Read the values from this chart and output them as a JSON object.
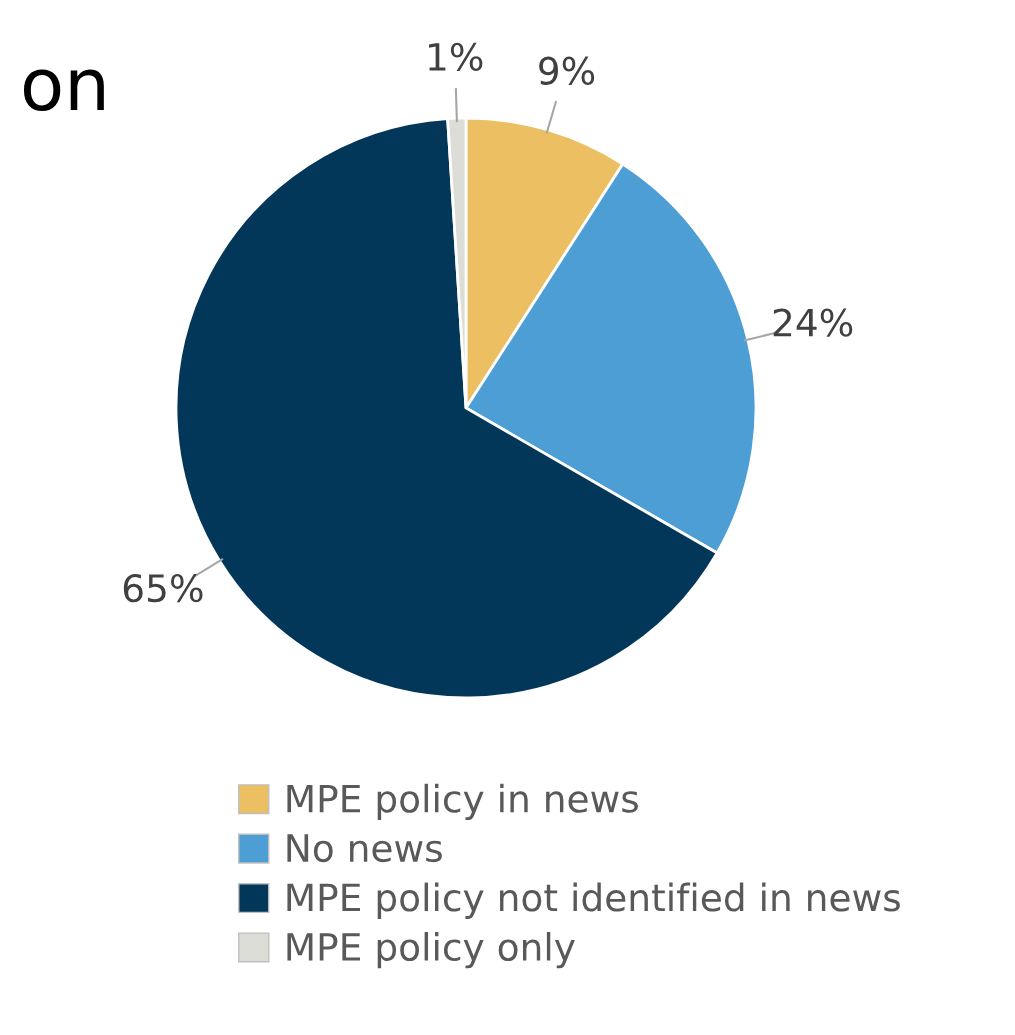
{
  "chart_data": {
    "type": "pie",
    "title": "on",
    "categories": [
      "MPE policy in news",
      "No news",
      "MPE policy not identified in news",
      "MPE policy only"
    ],
    "values": [
      9,
      24,
      65,
      1
    ],
    "colors": [
      "#ebbf62",
      "#4c9ed5",
      "#03375a",
      "#ddddd8"
    ],
    "value_labels": [
      "9%",
      "24%",
      "65%",
      "1%"
    ],
    "legend": "bottom"
  }
}
